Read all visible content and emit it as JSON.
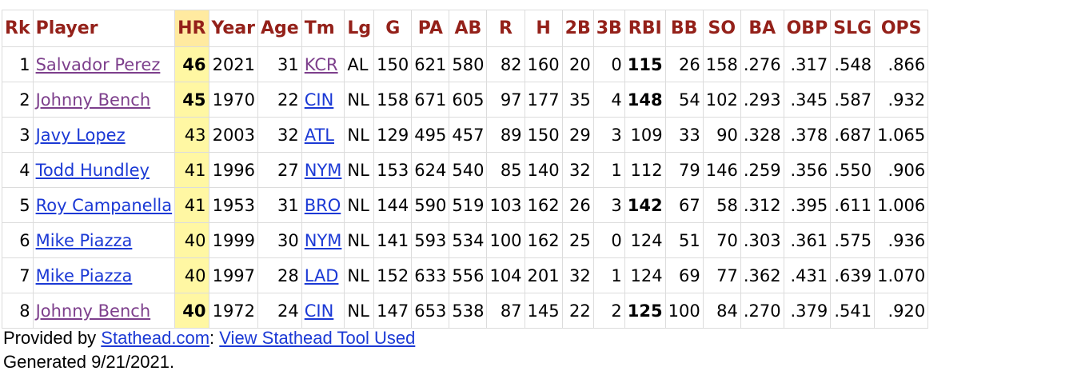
{
  "columns": [
    "Rk",
    "Player",
    "HR",
    "Year",
    "Age",
    "Tm",
    "Lg",
    "G",
    "PA",
    "AB",
    "R",
    "H",
    "2B",
    "3B",
    "RBI",
    "BB",
    "SO",
    "BA",
    "OBP",
    "SLG",
    "OPS"
  ],
  "rows": [
    {
      "rk": "1",
      "player": "Salvador Perez",
      "player_visited": true,
      "hr": "46",
      "hr_bold": true,
      "year": "2021",
      "age": "31",
      "tm": "KCR",
      "tm_visited": true,
      "lg": "AL",
      "g": "150",
      "pa": "621",
      "ab": "580",
      "r": "82",
      "h": "160",
      "2b": "20",
      "3b": "0",
      "rbi": "115",
      "rbi_bold": true,
      "bb": "26",
      "so": "158",
      "ba": ".276",
      "obp": ".317",
      "slg": ".548",
      "ops": ".866"
    },
    {
      "rk": "2",
      "player": "Johnny Bench",
      "player_visited": true,
      "hr": "45",
      "hr_bold": true,
      "year": "1970",
      "age": "22",
      "tm": "CIN",
      "tm_visited": false,
      "lg": "NL",
      "g": "158",
      "pa": "671",
      "ab": "605",
      "r": "97",
      "h": "177",
      "2b": "35",
      "3b": "4",
      "rbi": "148",
      "rbi_bold": true,
      "bb": "54",
      "so": "102",
      "ba": ".293",
      "obp": ".345",
      "slg": ".587",
      "ops": ".932"
    },
    {
      "rk": "3",
      "player": "Javy Lopez",
      "player_visited": false,
      "hr": "43",
      "hr_bold": false,
      "year": "2003",
      "age": "32",
      "tm": "ATL",
      "tm_visited": false,
      "lg": "NL",
      "g": "129",
      "pa": "495",
      "ab": "457",
      "r": "89",
      "h": "150",
      "2b": "29",
      "3b": "3",
      "rbi": "109",
      "rbi_bold": false,
      "bb": "33",
      "so": "90",
      "ba": ".328",
      "obp": ".378",
      "slg": ".687",
      "ops": "1.065"
    },
    {
      "rk": "4",
      "player": "Todd Hundley",
      "player_visited": false,
      "hr": "41",
      "hr_bold": false,
      "year": "1996",
      "age": "27",
      "tm": "NYM",
      "tm_visited": false,
      "lg": "NL",
      "g": "153",
      "pa": "624",
      "ab": "540",
      "r": "85",
      "h": "140",
      "2b": "32",
      "3b": "1",
      "rbi": "112",
      "rbi_bold": false,
      "bb": "79",
      "so": "146",
      "ba": ".259",
      "obp": ".356",
      "slg": ".550",
      "ops": ".906"
    },
    {
      "rk": "5",
      "player": "Roy Campanella",
      "player_visited": false,
      "hr": "41",
      "hr_bold": false,
      "year": "1953",
      "age": "31",
      "tm": "BRO",
      "tm_visited": false,
      "lg": "NL",
      "g": "144",
      "pa": "590",
      "ab": "519",
      "r": "103",
      "h": "162",
      "2b": "26",
      "3b": "3",
      "rbi": "142",
      "rbi_bold": true,
      "bb": "67",
      "so": "58",
      "ba": ".312",
      "obp": ".395",
      "slg": ".611",
      "ops": "1.006"
    },
    {
      "rk": "6",
      "player": "Mike Piazza",
      "player_visited": false,
      "hr": "40",
      "hr_bold": false,
      "year": "1999",
      "age": "30",
      "tm": "NYM",
      "tm_visited": false,
      "lg": "NL",
      "g": "141",
      "pa": "593",
      "ab": "534",
      "r": "100",
      "h": "162",
      "2b": "25",
      "3b": "0",
      "rbi": "124",
      "rbi_bold": false,
      "bb": "51",
      "so": "70",
      "ba": ".303",
      "obp": ".361",
      "slg": ".575",
      "ops": ".936"
    },
    {
      "rk": "7",
      "player": "Mike Piazza",
      "player_visited": false,
      "hr": "40",
      "hr_bold": false,
      "year": "1997",
      "age": "28",
      "tm": "LAD",
      "tm_visited": false,
      "lg": "NL",
      "g": "152",
      "pa": "633",
      "ab": "556",
      "r": "104",
      "h": "201",
      "2b": "32",
      "3b": "1",
      "rbi": "124",
      "rbi_bold": false,
      "bb": "69",
      "so": "77",
      "ba": ".362",
      "obp": ".431",
      "slg": ".639",
      "ops": "1.070"
    },
    {
      "rk": "8",
      "player": "Johnny Bench",
      "player_visited": true,
      "hr": "40",
      "hr_bold": true,
      "year": "1972",
      "age": "24",
      "tm": "CIN",
      "tm_visited": false,
      "lg": "NL",
      "g": "147",
      "pa": "653",
      "ab": "538",
      "r": "87",
      "h": "145",
      "2b": "22",
      "3b": "2",
      "rbi": "125",
      "rbi_bold": true,
      "bb": "100",
      "so": "84",
      "ba": ".270",
      "obp": ".379",
      "slg": ".541",
      "ops": ".920"
    }
  ],
  "footer": {
    "provided_prefix": "Provided by ",
    "site_link": "Stathead.com",
    "separator": ": ",
    "tool_link": "View Stathead Tool Used",
    "generated": "Generated 9/21/2021."
  },
  "colors": {
    "header_text": "#94211a",
    "hr_highlight": "#fff7a3",
    "link": "#1b39d5",
    "visited_link": "#7d3f8c"
  }
}
